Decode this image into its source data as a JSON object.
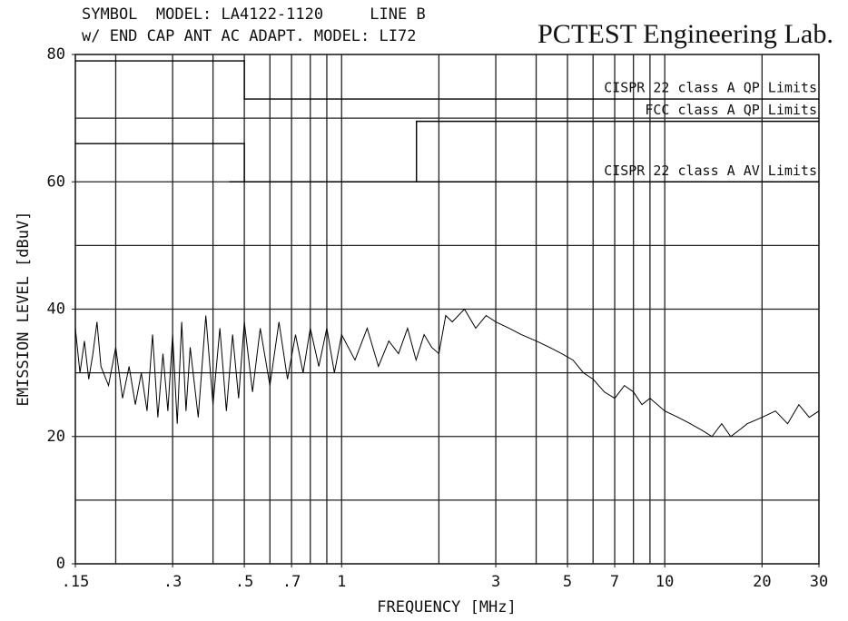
{
  "chart_data": {
    "type": "line",
    "header": [
      "SYMBOL  MODEL: LA4122-1120     LINE B",
      "w/ END CAP ANT AC ADAPT. MODEL: LI72"
    ],
    "lab": "PCTEST Engineering Lab.",
    "xlabel": "FREQUENCY [MHz]",
    "ylabel": "EMISSION LEVEL [dBuV]",
    "xscale": "log",
    "xlim": [
      0.15,
      30
    ],
    "ylim": [
      0,
      80
    ],
    "xticks": [
      {
        "value": 0.15,
        "label": ".15"
      },
      {
        "value": 0.3,
        "label": ".3"
      },
      {
        "value": 0.5,
        "label": ".5"
      },
      {
        "value": 0.7,
        "label": ".7"
      },
      1,
      3,
      5,
      7,
      10,
      20,
      30
    ],
    "yticks": [
      0,
      20,
      40,
      60,
      80
    ],
    "xgrid": [
      0.2,
      0.3,
      0.4,
      0.5,
      0.6,
      0.7,
      0.8,
      0.9,
      1,
      2,
      3,
      4,
      5,
      6,
      7,
      8,
      9,
      10,
      20
    ],
    "ygrid": [
      10,
      20,
      30,
      40,
      50,
      60,
      70
    ],
    "grid": true,
    "series": [
      {
        "color": "#000000",
        "x": [
          0.15,
          0.155,
          0.16,
          0.165,
          0.17,
          0.175,
          0.18,
          0.19,
          0.2,
          0.21,
          0.22,
          0.23,
          0.24,
          0.25,
          0.26,
          0.27,
          0.28,
          0.29,
          0.3,
          0.31,
          0.32,
          0.33,
          0.34,
          0.36,
          0.38,
          0.4,
          0.42,
          0.44,
          0.46,
          0.48,
          0.5,
          0.53,
          0.56,
          0.6,
          0.64,
          0.68,
          0.72,
          0.76,
          0.8,
          0.85,
          0.9,
          0.95,
          1,
          1.1,
          1.2,
          1.3,
          1.4,
          1.5,
          1.6,
          1.7,
          1.8,
          1.9,
          2,
          2.1,
          2.2,
          2.4,
          2.6,
          2.8,
          3,
          3.3,
          3.6,
          4,
          4.4,
          4.8,
          5.2,
          5.6,
          6,
          6.5,
          7,
          7.5,
          8,
          8.5,
          9,
          10,
          11,
          12,
          13,
          14,
          15,
          16,
          17,
          18,
          20,
          22,
          24,
          26,
          28,
          30
        ],
        "values": [
          37,
          30,
          35,
          29,
          33,
          38,
          31,
          28,
          34,
          26,
          31,
          25,
          30,
          24,
          36,
          23,
          33,
          24,
          36,
          22,
          38,
          24,
          34,
          23,
          39,
          25,
          37,
          24,
          36,
          26,
          38,
          27,
          37,
          28,
          38,
          29,
          36,
          30,
          37,
          31,
          37,
          30,
          36,
          32,
          37,
          31,
          35,
          33,
          37,
          32,
          36,
          34,
          33,
          39,
          38,
          40,
          37,
          39,
          38,
          37,
          36,
          35,
          34,
          33,
          32,
          30,
          29,
          27,
          26,
          28,
          27,
          25,
          26,
          24,
          23,
          22,
          21,
          20,
          22,
          20,
          21,
          22,
          23,
          24,
          22,
          25,
          23,
          24
        ]
      },
      {
        "name": "CISPR 22 class A QP Limits",
        "color": "#000000",
        "x": [
          0.15,
          0.5,
          0.5,
          30
        ],
        "values": [
          79,
          79,
          73,
          73
        ]
      },
      {
        "name": "FCC class A QP Limits",
        "color": "#000000",
        "x": [
          0.45,
          1.705,
          1.705,
          30
        ],
        "values": [
          60,
          60,
          69.5,
          69.5
        ]
      },
      {
        "name": "CISPR 22 class A AV Limits",
        "color": "#000000",
        "x": [
          0.15,
          0.5,
          0.5,
          30
        ],
        "values": [
          66,
          66,
          60,
          60
        ]
      }
    ]
  }
}
